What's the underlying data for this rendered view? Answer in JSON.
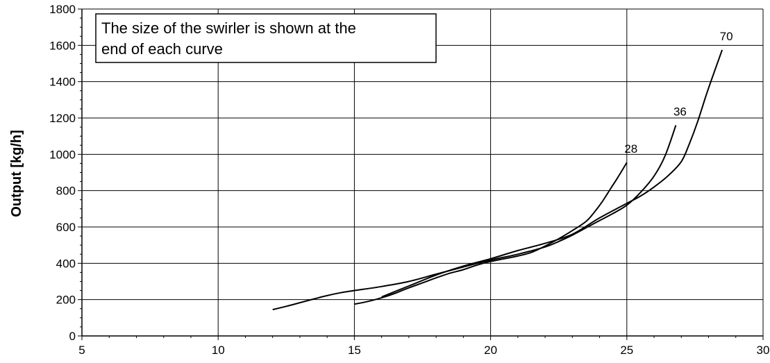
{
  "chart_data": {
    "type": "line",
    "title": "",
    "xlabel": "",
    "ylabel": "Output [kg/h]",
    "xlim": [
      5,
      30
    ],
    "ylim": [
      0,
      1800
    ],
    "x_ticks": [
      5,
      10,
      15,
      20,
      25,
      30
    ],
    "y_ticks": [
      0,
      200,
      400,
      600,
      800,
      1000,
      1200,
      1400,
      1600,
      1800
    ],
    "grid": true,
    "legend": "none",
    "annotation": [
      "The size of the swirler is shown at the",
      "end of each curve"
    ],
    "series": [
      {
        "name": "28",
        "x": [
          15.0,
          15.5,
          16.0,
          16.5,
          17.0,
          17.5,
          18.0,
          18.5,
          19.0,
          19.5,
          20.0,
          20.5,
          21.0,
          21.5,
          22.0,
          22.5,
          23.0,
          23.5,
          23.8,
          24.1,
          24.4,
          24.7,
          25.0
        ],
        "y": [
          175,
          190,
          210,
          235,
          265,
          292,
          320,
          345,
          365,
          390,
          410,
          425,
          440,
          460,
          495,
          535,
          580,
          630,
          680,
          740,
          810,
          880,
          955
        ]
      },
      {
        "name": "36",
        "x": [
          12.0,
          12.5,
          13.0,
          13.5,
          14.0,
          14.5,
          15.0,
          16.0,
          17.0,
          18.0,
          19.0,
          20.0,
          21.0,
          22.0,
          22.5,
          23.0,
          23.5,
          24.0,
          24.5,
          25.0,
          25.5,
          26.0,
          26.4,
          26.8
        ],
        "y": [
          145,
          163,
          183,
          203,
          222,
          238,
          250,
          272,
          300,
          340,
          380,
          418,
          450,
          490,
          520,
          555,
          595,
          635,
          675,
          720,
          790,
          880,
          990,
          1160
        ]
      },
      {
        "name": "70",
        "x": [
          16.0,
          17.0,
          18.0,
          19.0,
          20.0,
          21.0,
          22.0,
          23.0,
          24.0,
          25.0,
          25.5,
          26.0,
          26.5,
          27.0,
          27.3,
          27.6,
          27.9,
          28.2,
          28.5
        ],
        "y": [
          215,
          275,
          335,
          385,
          425,
          470,
          510,
          560,
          650,
          730,
          770,
          820,
          880,
          960,
          1060,
          1180,
          1320,
          1450,
          1575
        ]
      }
    ]
  }
}
